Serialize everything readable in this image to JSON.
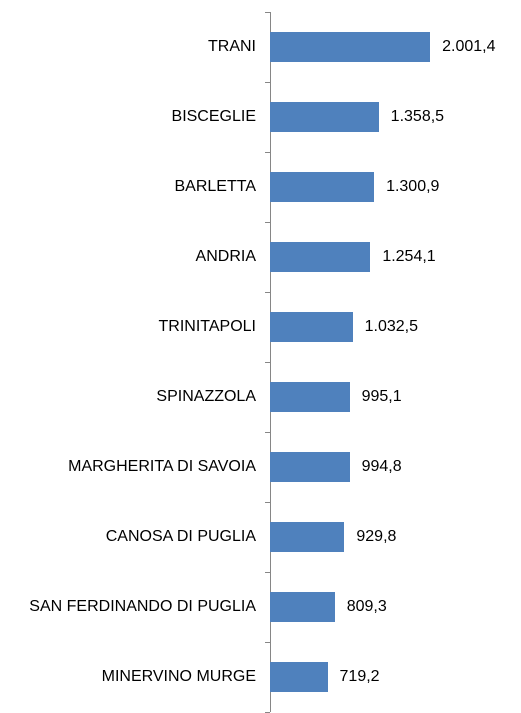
{
  "chart_data": {
    "type": "bar",
    "orientation": "horizontal",
    "categories": [
      "TRANI",
      "BISCEGLIE",
      "BARLETTA",
      "ANDRIA",
      "TRINITAPOLI",
      "SPINAZZOLA",
      "MARGHERITA DI SAVOIA",
      "CANOSA DI PUGLIA",
      "SAN FERDINANDO DI PUGLIA",
      "MINERVINO MURGE"
    ],
    "values": [
      2001.4,
      1358.5,
      1300.9,
      1254.1,
      1032.5,
      995.1,
      994.8,
      929.8,
      809.3,
      719.2
    ],
    "value_labels": [
      "2.001,4",
      "1.358,5",
      "1.300,9",
      "1.254,1",
      "1.032,5",
      "995,1",
      "994,8",
      "929,8",
      "809,3",
      "719,2"
    ],
    "color": "#4f81bd",
    "xlim": [
      0,
      2500
    ]
  }
}
